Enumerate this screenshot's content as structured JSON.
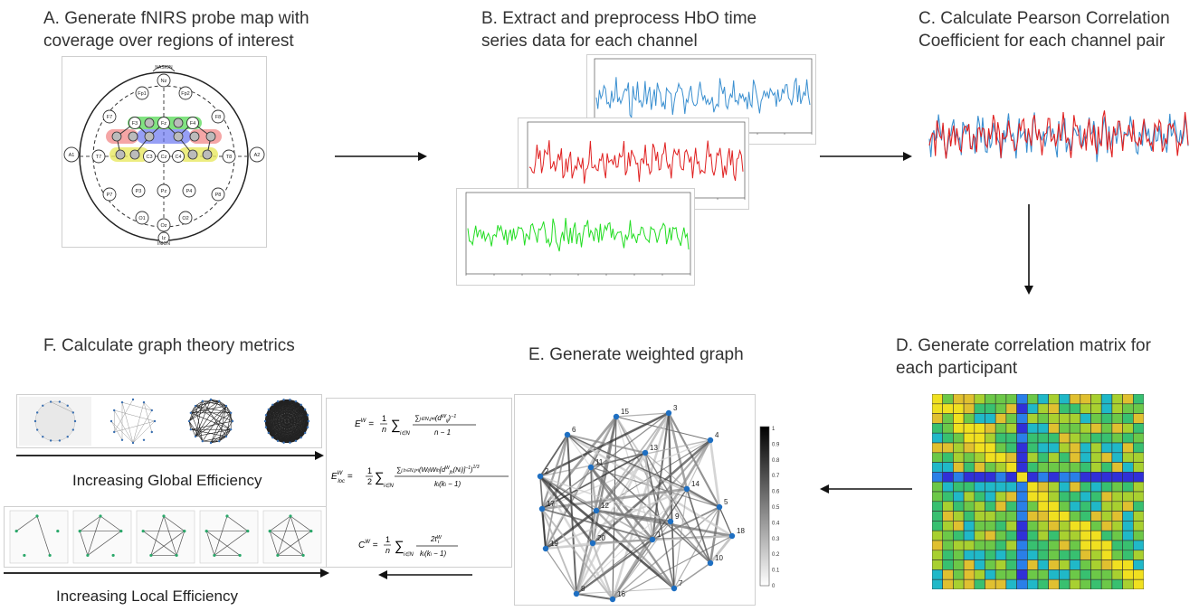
{
  "steps": {
    "a": {
      "line1": "A. Generate fNIRS probe map with",
      "line2": "coverage over regions of interest"
    },
    "b": {
      "line1": "B. Extract and preprocess HbO time",
      "line2": "series data for each channel"
    },
    "c": {
      "line1": "C. Calculate Pearson Correlation",
      "line2": "Coefficient for each channel pair"
    },
    "d": {
      "line1": "D. Generate correlation matrix for",
      "line2": "each participant"
    },
    "e": {
      "line1": "E. Generate weighted graph"
    },
    "f": {
      "line1": "F. Calculate graph theory metrics"
    }
  },
  "probe_map": {
    "nasion": "NASION",
    "inion": "INION",
    "electrodes": [
      "Nz",
      "Fp1",
      "Fp2",
      "F7",
      "F3",
      "Fz",
      "F4",
      "F8",
      "A1",
      "T7",
      "C3",
      "Cz",
      "C4",
      "T8",
      "A2",
      "P7",
      "P3",
      "Pz",
      "P4",
      "P8",
      "O1",
      "Oz",
      "O2",
      "Iz"
    ]
  },
  "captions": {
    "global": "Increasing Global Efficiency",
    "local": "Increasing Local Efficiency"
  },
  "formulas": {
    "global_efficiency": "E^W = (1/n) Σ_{i∈N} [ Σ_{j∈N, j≠i} (d_ij^W)^-1 ] / (n − 1)",
    "local_efficiency": "E_loc^W = (1/2) Σ_{i∈N} [ Σ_{j,h∈N, j≠i} (W_ij W_ih [d_jh^W(N_i)]^-1)^(1/3) ] / (k_i (k_i − 1))",
    "clustering": "C^W = (1/n) Σ_{i∈N} 2t_i^W / (k_i (k_i − 1))"
  },
  "graph": {
    "node_labels": [
      "15",
      "3",
      "4",
      "5",
      "18",
      "13",
      "6",
      "11",
      "14",
      "9",
      "2",
      "12",
      "10",
      "16",
      "19",
      "8",
      "7",
      "17",
      "1",
      "20"
    ],
    "colorbar_ticks": [
      "1",
      "0.9",
      "0.8",
      "0.7",
      "0.6",
      "0.5",
      "0.4",
      "0.3",
      "0.2",
      "0.1",
      "0"
    ]
  },
  "colors": {
    "hbo_blue": "#3a8fd0",
    "hbo_red": "#e02020",
    "hbo_green": "#22dd22",
    "node_blue": "#1e6fc2",
    "roi_green": "#57d957",
    "roi_blue": "#5e6cf0",
    "roi_red": "#ee6b6b",
    "roi_yellow": "#e8e860"
  }
}
